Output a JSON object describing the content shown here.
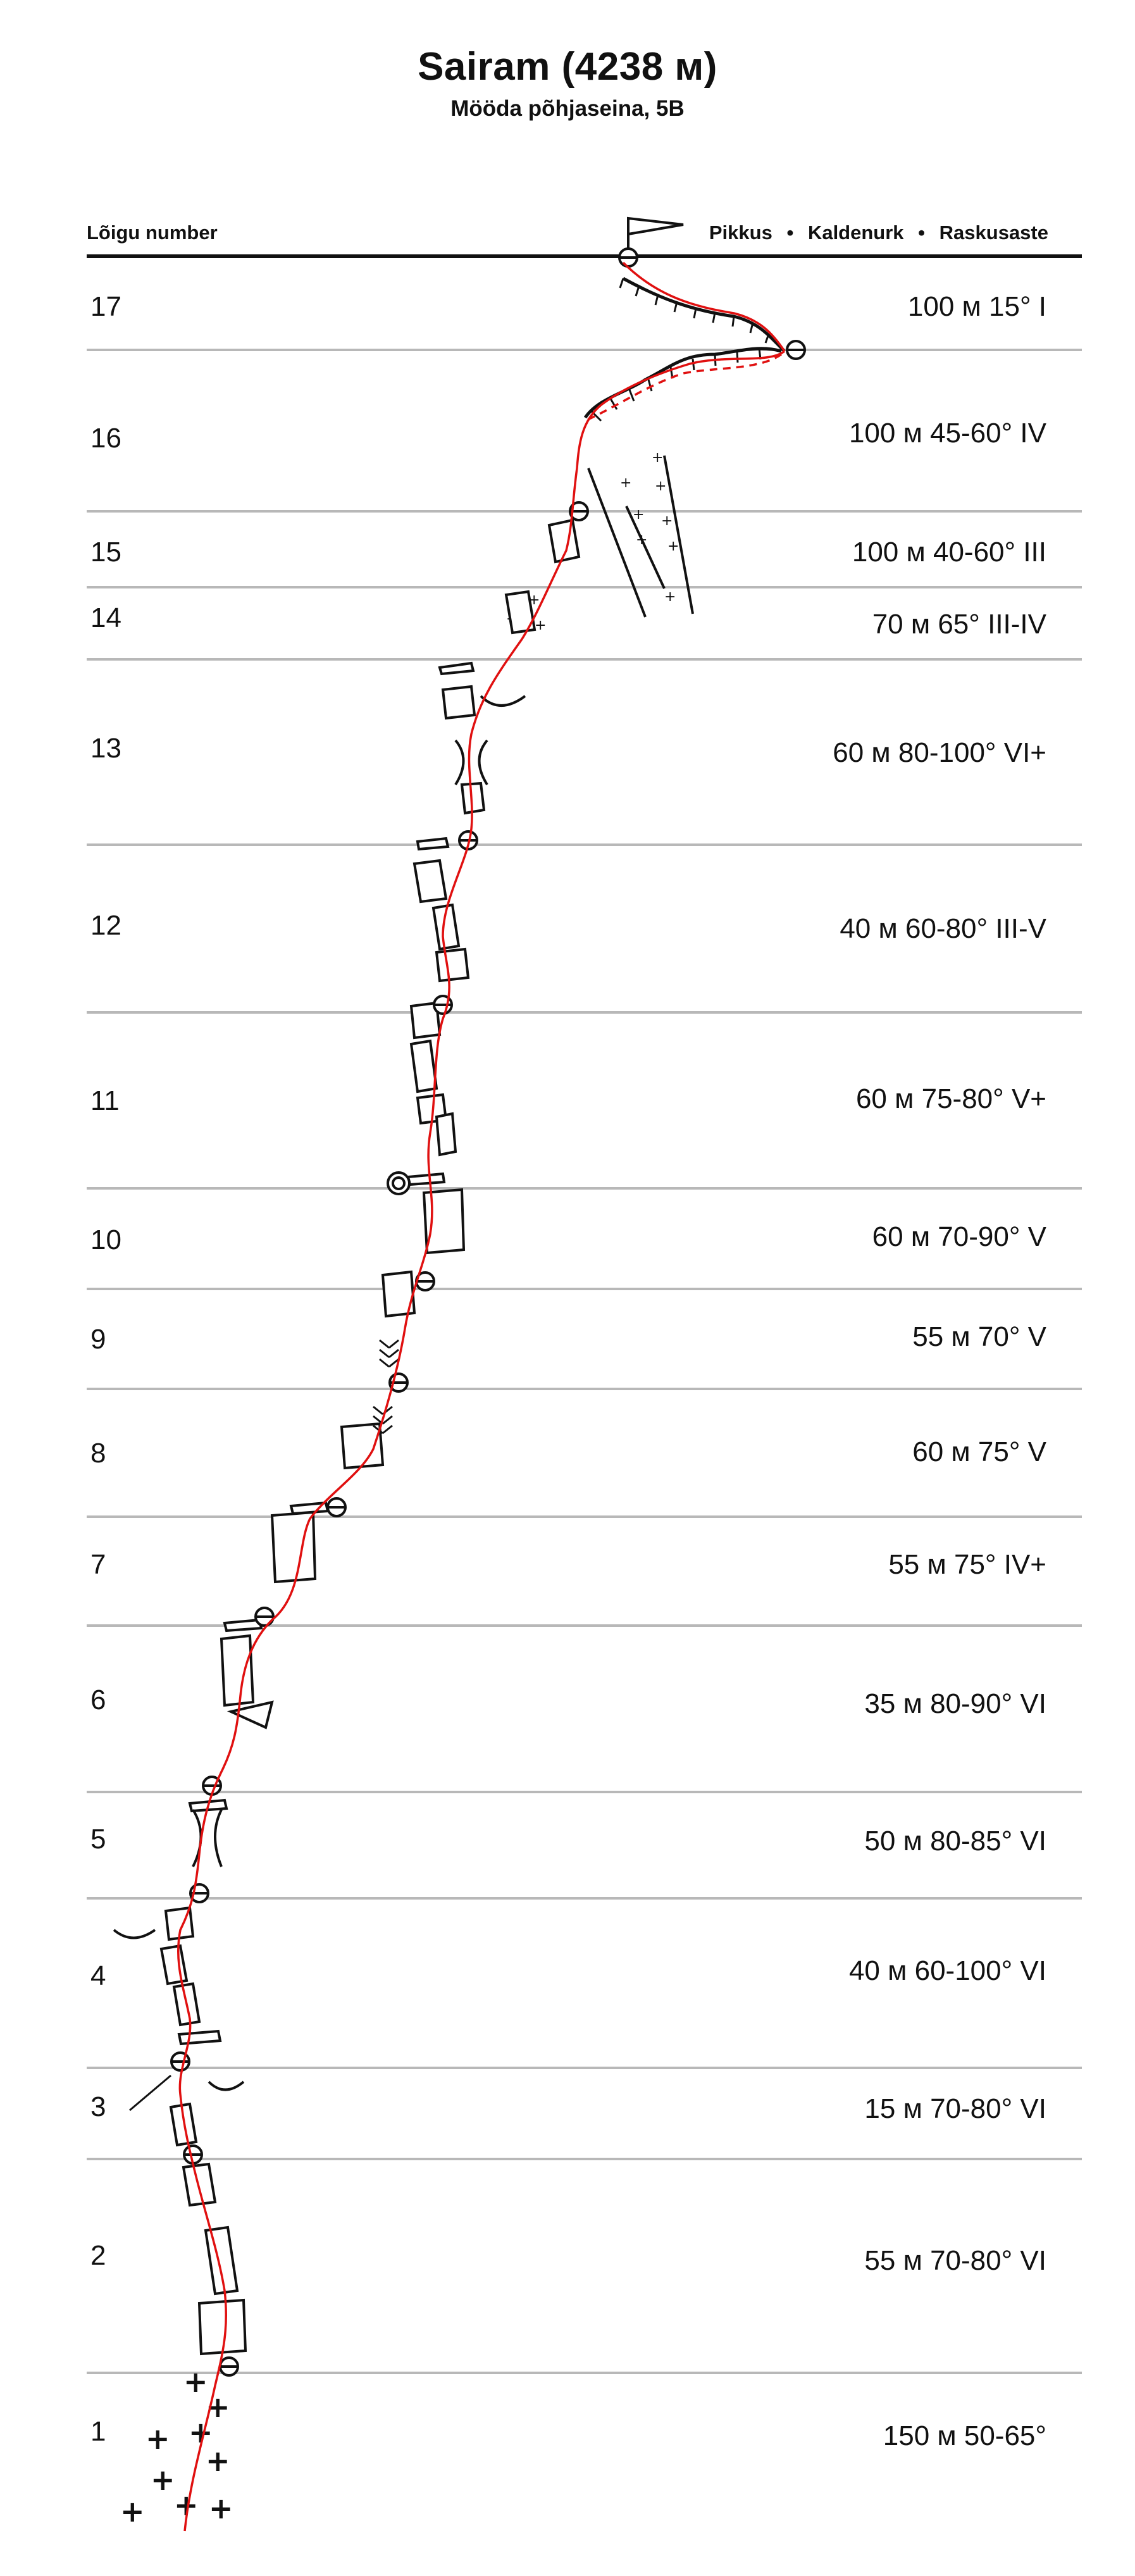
{
  "title": "Sairam (4238 м)",
  "subtitle": "Mööda põhjaseina, 5B",
  "header": {
    "left_label": "Lõigu number",
    "right_labels": [
      "Pikkus",
      "Kaldenurk",
      "Raskusaste"
    ],
    "separator": "•"
  },
  "segments": [
    {
      "number": "17",
      "info": "100 м 15° I"
    },
    {
      "number": "16",
      "info": "100 м 45-60° IV"
    },
    {
      "number": "15",
      "info": "100 м 40-60° III"
    },
    {
      "number": "14",
      "info": "70 м 65° III-IV"
    },
    {
      "number": "13",
      "info": "60 м 80-100° VI+"
    },
    {
      "number": "12",
      "info": "40 м 60-80° III-V"
    },
    {
      "number": "11",
      "info": "60 м 75-80° V+"
    },
    {
      "number": "10",
      "info": "60 м 70-90° V"
    },
    {
      "number": "9",
      "info": "55 м 70° V"
    },
    {
      "number": "8",
      "info": "60 м 75° V"
    },
    {
      "number": "7",
      "info": "55 м 75° IV+"
    },
    {
      "number": "6",
      "info": "35 м 80-90° VI"
    },
    {
      "number": "5",
      "info": "50 м 80-85° VI"
    },
    {
      "number": "4",
      "info": "40 м 60-100° VI"
    },
    {
      "number": "3",
      "info": "15 м 70-80° VI"
    },
    {
      "number": "2",
      "info": "55 м 70-80° VI"
    },
    {
      "number": "1",
      "info": "150 м 50-65°"
    }
  ],
  "colors": {
    "route": "#e01010",
    "ink": "#111111",
    "rule": "#b8b8b8"
  }
}
